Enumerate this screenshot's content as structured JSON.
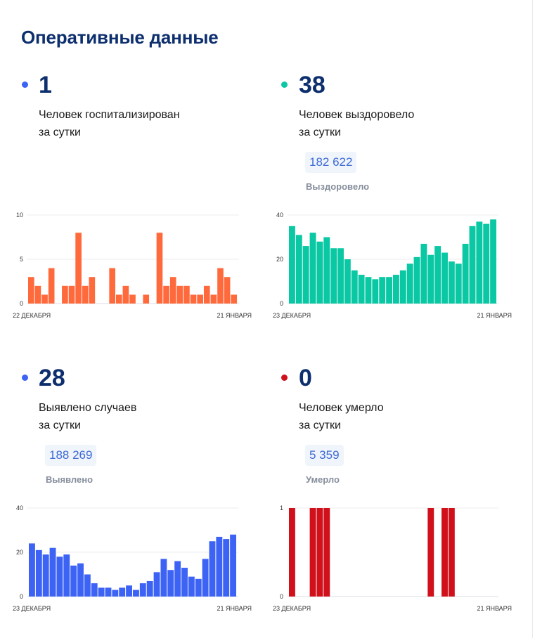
{
  "page_title": "Оперативные данные",
  "colors": {
    "title": "#0d2f6e",
    "hospitalized": "#ff6a3d",
    "recovered": "#0ac8a4",
    "cases": "#3d63f5",
    "died": "#d0101b",
    "badge_bg": "#f0f4fb",
    "badge_text": "#3d6ad6"
  },
  "panels": {
    "hospitalized": {
      "value": "1",
      "desc_line1": "Человек госпитализирован",
      "desc_line2": "за сутки"
    },
    "recovered": {
      "value": "38",
      "desc_line1": "Человек выздоровело",
      "desc_line2": "за сутки",
      "total": "182 622",
      "total_label": "Выздоровело"
    },
    "cases": {
      "value": "28",
      "desc_line1": "Выявлено случаев",
      "desc_line2": "за сутки",
      "total": "188 269",
      "total_label": "Выявлено"
    },
    "died": {
      "value": "0",
      "desc_line1": "Человек умерло",
      "desc_line2": "за сутки",
      "total": "5 359",
      "total_label": "Умерло"
    }
  },
  "chart_data": [
    {
      "id": "hospitalized",
      "type": "bar",
      "x_start_label": "22 ДЕКАБРЯ",
      "x_end_label": "21 ЯНВАРЯ",
      "ylim": [
        0,
        10
      ],
      "yticks": [
        0,
        5,
        10
      ],
      "grid": true,
      "color": "#ff6a3d",
      "values": [
        3,
        2,
        1,
        4,
        0,
        2,
        2,
        8,
        2,
        3,
        0,
        0,
        4,
        1,
        2,
        1,
        0,
        1,
        0,
        8,
        2,
        3,
        2,
        2,
        1,
        1,
        2,
        1,
        4,
        3,
        1
      ]
    },
    {
      "id": "recovered",
      "type": "bar",
      "x_start_label": "23 ДЕКАБРЯ",
      "x_end_label": "21 ЯНВАРЯ",
      "ylim": [
        0,
        40
      ],
      "yticks": [
        0,
        20,
        40
      ],
      "grid": true,
      "color": "#0ac8a4",
      "values": [
        35,
        31,
        26,
        32,
        28,
        30,
        25,
        25,
        20,
        15,
        13,
        12,
        11,
        12,
        12,
        13,
        15,
        18,
        21,
        27,
        22,
        26,
        23,
        19,
        18,
        27,
        35,
        37,
        36,
        38
      ]
    },
    {
      "id": "cases",
      "type": "bar",
      "x_start_label": "23 ДЕКАБРЯ",
      "x_end_label": "21 ЯНВАРЯ",
      "ylim": [
        0,
        40
      ],
      "yticks": [
        0,
        20,
        40
      ],
      "grid": true,
      "color": "#3d63f5",
      "values": [
        24,
        21,
        19,
        22,
        18,
        19,
        14,
        15,
        10,
        6,
        4,
        4,
        3,
        4,
        5,
        3,
        6,
        7,
        11,
        17,
        12,
        16,
        13,
        9,
        8,
        17,
        25,
        27,
        26,
        28
      ]
    },
    {
      "id": "died",
      "type": "bar",
      "x_start_label": "23 ДЕКАБРЯ",
      "x_end_label": "21 ЯНВАРЯ",
      "ylim": [
        0,
        1
      ],
      "yticks": [
        0,
        1
      ],
      "grid": true,
      "color": "#d0101b",
      "values": [
        1,
        0,
        0,
        1,
        1,
        1,
        0,
        0,
        0,
        0,
        0,
        0,
        0,
        0,
        0,
        0,
        0,
        0,
        0,
        0,
        1,
        0,
        1,
        1,
        0,
        0,
        0,
        0,
        0,
        0
      ]
    }
  ]
}
